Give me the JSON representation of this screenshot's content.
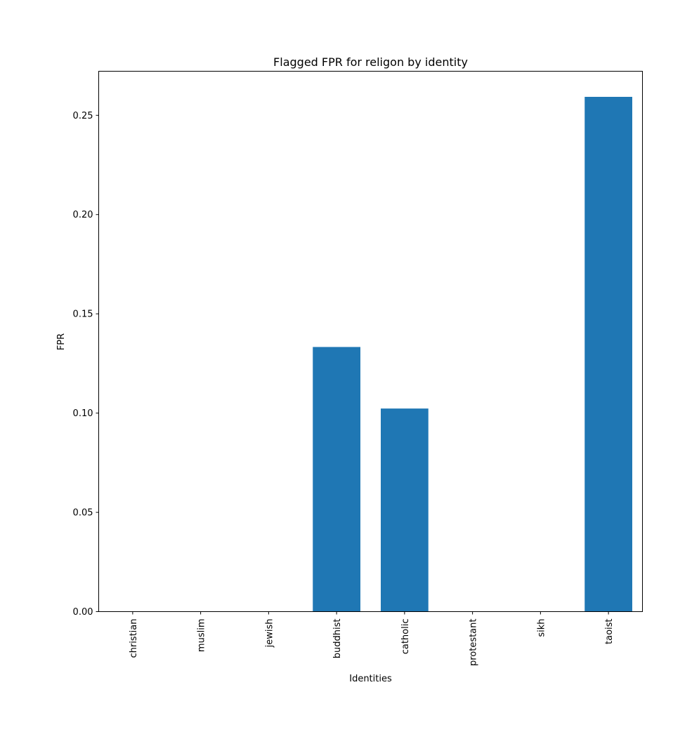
{
  "chart_data": {
    "type": "bar",
    "title": "Flagged FPR for religon by identity",
    "xlabel": "Identities",
    "ylabel": "FPR",
    "categories": [
      "christian",
      "muslim",
      "jewish",
      "buddhist",
      "catholic",
      "protestant",
      "sikh",
      "taoist"
    ],
    "values": [
      0.0,
      0.0,
      0.0,
      0.1333,
      0.1023,
      0.0,
      0.0,
      0.2593
    ],
    "ylim": [
      0,
      0.2722
    ],
    "yticks": [
      0.0,
      0.05,
      0.1,
      0.15,
      0.2,
      0.25
    ],
    "ytick_labels": [
      "0.00",
      "0.05",
      "0.10",
      "0.15",
      "0.20",
      "0.25"
    ],
    "bar_color": "#1f77b4",
    "grid": false,
    "legend": false
  }
}
